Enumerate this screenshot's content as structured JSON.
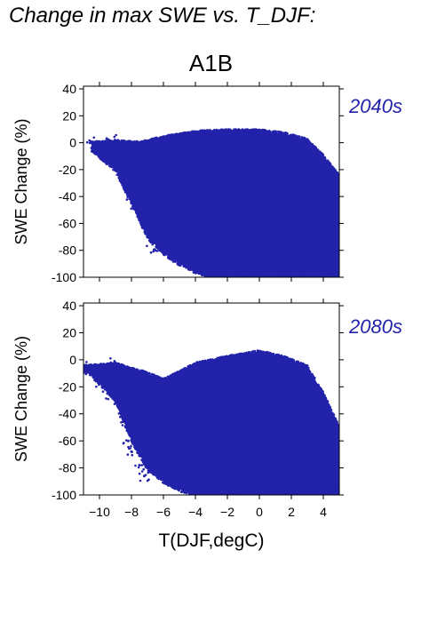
{
  "title": "Change in max SWE vs. T_DJF:",
  "scenario": "A1B",
  "colors": {
    "points": "#2222aa",
    "period_label": "#2222aa",
    "axes": "#000000"
  },
  "chart_data": [
    {
      "type": "scatter",
      "period": "2040s",
      "ylabel": "SWE Change (%)",
      "xlabel": "",
      "xlim": [
        -11,
        5
      ],
      "ylim": [
        -100,
        42
      ],
      "yticks": [
        40,
        20,
        0,
        -20,
        -40,
        -60,
        -80,
        -100
      ],
      "xticks": [
        -10,
        -8,
        -6,
        -4,
        -2,
        0,
        2,
        4
      ],
      "x_tick_labels_shown": false,
      "point_cloud": {
        "description_of_density": "dense core of points between T_DJF -6 and 5 degC",
        "x_range": [
          -10.5,
          5
        ],
        "upper_envelope": [
          [
            -10.5,
            0
          ],
          [
            -9,
            1
          ],
          [
            -7.5,
            0
          ],
          [
            -6,
            4
          ],
          [
            -4,
            8
          ],
          [
            -2,
            9
          ],
          [
            0,
            9
          ],
          [
            1.5,
            7
          ],
          [
            3,
            2
          ],
          [
            4,
            -10
          ],
          [
            5,
            -25
          ]
        ],
        "lower_envelope": [
          [
            -10.5,
            -5
          ],
          [
            -9,
            -20
          ],
          [
            -8,
            -45
          ],
          [
            -7,
            -70
          ],
          [
            -6,
            -82
          ],
          [
            -5,
            -90
          ],
          [
            -4,
            -96
          ],
          [
            -3,
            -99
          ],
          [
            -2,
            -100
          ],
          [
            5,
            -100
          ]
        ],
        "sparse_left_points": [
          [
            -10.5,
            0
          ],
          [
            -10,
            -3
          ],
          [
            -9.6,
            0
          ],
          [
            -9.2,
            1
          ],
          [
            -8.8,
            -5
          ],
          [
            -8.5,
            -10
          ],
          [
            -8.2,
            -25
          ],
          [
            -8,
            -38
          ],
          [
            -7.8,
            -45
          ],
          [
            -7.6,
            -15
          ],
          [
            -7.2,
            -55
          ],
          [
            -7,
            -62
          ],
          [
            -6.8,
            -72
          ],
          [
            -6.5,
            -80
          ]
        ]
      }
    },
    {
      "type": "scatter",
      "period": "2080s",
      "ylabel": "SWE Change (%)",
      "xlabel": "T(DJF,degC)",
      "xlim": [
        -11,
        5
      ],
      "ylim": [
        -100,
        42
      ],
      "yticks": [
        40,
        20,
        0,
        -20,
        -40,
        -60,
        -80,
        -100
      ],
      "xticks": [
        -10,
        -8,
        -6,
        -4,
        -2,
        0,
        2,
        4
      ],
      "x_tick_labels_shown": true,
      "point_cloud": {
        "description_of_density": "dense core of points between T_DJF -6 and 5 degC",
        "x_range": [
          -11,
          5
        ],
        "upper_envelope": [
          [
            -11,
            -5
          ],
          [
            -9,
            -3
          ],
          [
            -7,
            -10
          ],
          [
            -6,
            -15
          ],
          [
            -4,
            -3
          ],
          [
            -2,
            2
          ],
          [
            0,
            6
          ],
          [
            1.5,
            2
          ],
          [
            3,
            -5
          ],
          [
            4,
            -25
          ],
          [
            5,
            -50
          ]
        ],
        "lower_envelope": [
          [
            -11,
            -5
          ],
          [
            -9,
            -30
          ],
          [
            -8,
            -60
          ],
          [
            -7,
            -80
          ],
          [
            -6,
            -90
          ],
          [
            -5,
            -96
          ],
          [
            -4,
            -99
          ],
          [
            -3,
            -100
          ],
          [
            5,
            -100
          ]
        ],
        "sparse_left_points": [
          [
            -11,
            -5
          ],
          [
            -10.2,
            -8
          ],
          [
            -10,
            -15
          ],
          [
            -9.5,
            -25
          ],
          [
            -9.2,
            -3
          ],
          [
            -8.8,
            -35
          ],
          [
            -8.5,
            -45
          ],
          [
            -8.2,
            -60
          ],
          [
            -8,
            -68
          ],
          [
            -7.8,
            -52
          ],
          [
            -7.5,
            -78
          ],
          [
            -7.2,
            -86
          ],
          [
            -6.8,
            -82
          ]
        ]
      }
    }
  ]
}
